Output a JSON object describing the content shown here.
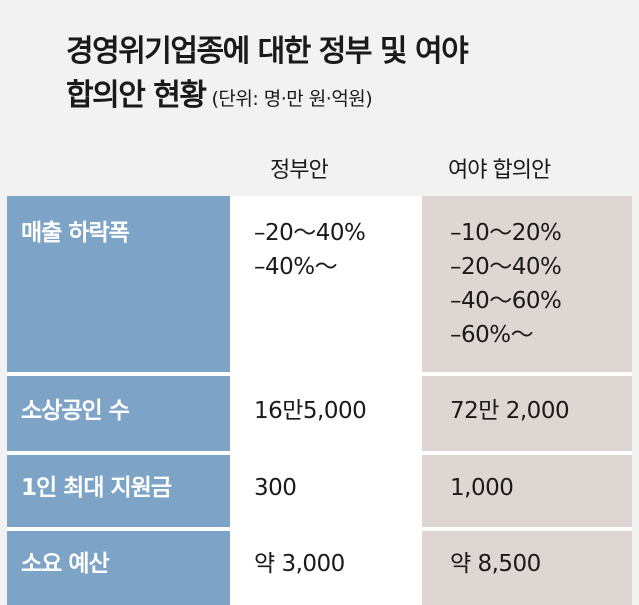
{
  "title": {
    "line1": "경영위기업종에 대한 정부 및 여야",
    "line2": "합의안 현황",
    "unit": "(단위: 명·만 원·억원)"
  },
  "columns": {
    "gov": "정부안",
    "opp": "여야 합의안"
  },
  "rows": [
    {
      "label": "매출 하락폭",
      "gov": [
        "–20～40%",
        "–40%～"
      ],
      "opp": [
        "–10～20%",
        "–20～40%",
        "–40～60%",
        "–60%～"
      ]
    },
    {
      "label": "소상공인 수",
      "gov": [
        "16만5,000"
      ],
      "opp": [
        "72만 2,000"
      ]
    },
    {
      "label": "1인 최대 지원금",
      "gov": [
        "300"
      ],
      "opp": [
        "1,000"
      ]
    },
    {
      "label": "소요 예산",
      "gov": [
        "약 3,000"
      ],
      "opp": [
        "약 8,500"
      ]
    }
  ],
  "colors": {
    "label_bg": "#7da3c6",
    "gov_bg": "#ffffff",
    "opp_bg": "#ddd6d3",
    "page_bg": "#f2f2f2"
  }
}
